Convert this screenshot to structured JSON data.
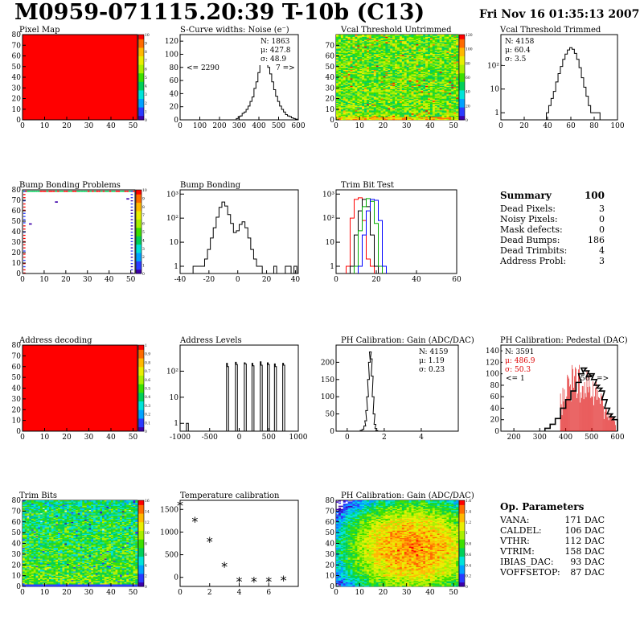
{
  "header": {
    "title": "M0959-071115.20:39 T-10b (C13)",
    "date": "Fri Nov 16 01:35:13 2007"
  },
  "panels": {
    "pixel_map": {
      "title": "Pixel Map",
      "xticks": [
        "0",
        "10",
        "20",
        "30",
        "40",
        "50"
      ],
      "yticks": [
        "0",
        "10",
        "20",
        "30",
        "40",
        "50",
        "60",
        "70",
        "80"
      ],
      "palette_ticks": [
        "0",
        "1",
        "2",
        "3",
        "4",
        "5",
        "6",
        "7",
        "8",
        "9",
        "10"
      ],
      "fill_color": "#ff0000"
    },
    "scurve": {
      "title": "S-Curve widths: Noise (e⁻)",
      "xticks": [
        "0",
        "100",
        "200",
        "300",
        "400",
        "500",
        "600"
      ],
      "yticks": [
        "0",
        "20",
        "40",
        "60",
        "80",
        "100",
        "120"
      ],
      "stats": [
        "N: 1863",
        "μ: 427.8",
        "σ: 48.9"
      ],
      "underflow": "<= 2290",
      "overflow": "7 =>"
    },
    "vcal_untrimmed": {
      "title": "Vcal Threshold Untrimmed",
      "xticks": [
        "0",
        "10",
        "20",
        "30",
        "40",
        "50"
      ],
      "yticks": [
        "0",
        "10",
        "20",
        "30",
        "40",
        "50",
        "60",
        "70"
      ],
      "palette_ticks": [
        "0",
        "20",
        "40",
        "60",
        "80",
        "100",
        "120"
      ]
    },
    "vcal_trimmed": {
      "title": "Vcal Threshold Trimmed",
      "xticks": [
        "0",
        "20",
        "40",
        "60",
        "80",
        "100"
      ],
      "yticks": [
        "1",
        "10",
        "10²"
      ],
      "stats": [
        "N: 4158",
        "μ: 60.4",
        "σ:  3.5"
      ]
    },
    "bump_problems": {
      "title": "Bump Bonding Problems",
      "xticks": [
        "0",
        "10",
        "20",
        "30",
        "40",
        "50"
      ],
      "yticks": [
        "0",
        "10",
        "20",
        "30",
        "40",
        "50",
        "60",
        "70",
        "80"
      ],
      "palette_ticks": [
        "0",
        "1",
        "2",
        "3",
        "4",
        "5",
        "6",
        "7",
        "8",
        "9",
        "10"
      ]
    },
    "bump_bonding": {
      "title": "Bump Bonding",
      "xticks": [
        "-40",
        "-20",
        "0",
        "20",
        "40"
      ],
      "yticks": [
        "1",
        "10",
        "10²",
        "10³"
      ]
    },
    "trim_bit_test": {
      "title": "Trim Bit Test",
      "xticks": [
        "0",
        "20",
        "40",
        "60"
      ],
      "yticks": [
        "1",
        "10",
        "10²",
        "10³"
      ]
    },
    "address_decoding": {
      "title": "Address decoding",
      "xticks": [
        "0",
        "10",
        "20",
        "30",
        "40",
        "50"
      ],
      "yticks": [
        "0",
        "10",
        "20",
        "30",
        "40",
        "50",
        "60",
        "70",
        "80"
      ],
      "palette_ticks": [
        "0",
        "0.1",
        "0.2",
        "0.3",
        "0.4",
        "0.5",
        "0.6",
        "0.7",
        "0.8",
        "0.9",
        "1"
      ],
      "fill_color": "#ff0000"
    },
    "address_levels": {
      "title": "Address Levels",
      "xticks": [
        "-1000",
        "-500",
        "0",
        "500",
        "1000"
      ],
      "yticks": [
        "1",
        "10",
        "10²"
      ]
    },
    "ph_gain_hist": {
      "title": "PH Calibration: Gain (ADC/DAC)",
      "xticks": [
        "0",
        "2",
        "4"
      ],
      "yticks": [
        "0",
        "50",
        "100",
        "150",
        "200"
      ],
      "stats": [
        "N: 4159",
        "μ: 1.19",
        "σ: 0.23"
      ]
    },
    "ph_pedestal": {
      "title": "PH Calibration: Pedestal (DAC)",
      "xticks": [
        "200",
        "300",
        "400",
        "500",
        "600"
      ],
      "yticks": [
        "0",
        "20",
        "40",
        "60",
        "80",
        "100",
        "120",
        "140"
      ],
      "stats": [
        "N: 3591",
        "μ: 486.9",
        "σ: 50.3"
      ],
      "underflow": "<= 1",
      "overflow": "567 =>"
    },
    "trim_bits": {
      "title": "Trim Bits",
      "xticks": [
        "0",
        "10",
        "20",
        "30",
        "40",
        "50"
      ],
      "yticks": [
        "0",
        "10",
        "20",
        "30",
        "40",
        "50",
        "60",
        "70",
        "80"
      ],
      "palette_ticks": [
        "0",
        "2",
        "4",
        "6",
        "8",
        "10",
        "12",
        "14",
        "16"
      ]
    },
    "temperature": {
      "title": "Temperature calibration",
      "xticks": [
        "0",
        "2",
        "4",
        "6"
      ],
      "yticks": [
        "0",
        "500",
        "1000",
        "1500"
      ]
    },
    "ph_gain_map": {
      "title": "PH Calibration: Gain (ADC/DAC)",
      "xticks": [
        "0",
        "10",
        "20",
        "30",
        "40",
        "50"
      ],
      "yticks": [
        "0",
        "10",
        "20",
        "30",
        "40",
        "50",
        "60",
        "70",
        "80"
      ],
      "palette_ticks": [
        "0",
        "0.2",
        "0.4",
        "0.6",
        "0.8",
        "1",
        "1.2",
        "1.4",
        "1.6"
      ]
    }
  },
  "chart_data": [
    {
      "type": "heatmap",
      "ref": "pixel_map",
      "xlim": [
        0,
        52
      ],
      "ylim": [
        0,
        80
      ],
      "zlim": [
        0,
        10
      ],
      "description_value": 10
    },
    {
      "type": "bar",
      "ref": "scurve",
      "xlim": [
        0,
        600
      ],
      "ylim": [
        0,
        130
      ],
      "x": [
        290,
        300,
        310,
        320,
        330,
        340,
        350,
        360,
        370,
        380,
        390,
        400,
        410,
        420,
        430,
        440,
        450,
        460,
        470,
        480,
        490,
        500,
        510,
        520,
        530,
        540,
        550,
        560,
        570,
        580,
        590
      ],
      "values": [
        2,
        5,
        6,
        10,
        12,
        16,
        21,
        28,
        35,
        48,
        58,
        72,
        86,
        94,
        98,
        90,
        80,
        70,
        58,
        46,
        36,
        28,
        21,
        16,
        12,
        8,
        6,
        5,
        3,
        2,
        1
      ]
    },
    {
      "type": "heatmap",
      "ref": "vcal_untrimmed",
      "xlim": [
        0,
        52
      ],
      "ylim": [
        0,
        80
      ],
      "zlim": [
        0,
        130
      ]
    },
    {
      "type": "bar",
      "ref": "vcal_trimmed",
      "log": true,
      "xlim": [
        0,
        100
      ],
      "ylim": [
        0.5,
        2000
      ],
      "x": [
        40,
        42,
        44,
        46,
        48,
        50,
        52,
        54,
        56,
        58,
        60,
        62,
        64,
        66,
        68,
        70,
        72,
        74,
        76,
        78,
        80,
        82,
        84
      ],
      "values": [
        1,
        2,
        4,
        8,
        20,
        45,
        90,
        180,
        300,
        450,
        560,
        480,
        320,
        180,
        80,
        30,
        12,
        5,
        2,
        1,
        1,
        1,
        1
      ]
    },
    {
      "type": "heatmap",
      "ref": "bump_problems",
      "xlim": [
        0,
        52
      ],
      "ylim": [
        0,
        80
      ],
      "zlim": [
        0,
        10
      ]
    },
    {
      "type": "bar",
      "ref": "bump_bonding",
      "log": true,
      "xlim": [
        -40,
        42
      ],
      "ylim": [
        0.5,
        1500
      ],
      "x": [
        -30,
        -28,
        -26,
        -24,
        -22,
        -20,
        -18,
        -16,
        -14,
        -12,
        -10,
        -8,
        -6,
        -4,
        -2,
        0,
        2,
        4,
        6,
        8,
        10,
        12,
        14,
        16,
        18,
        20,
        22,
        24,
        26,
        28,
        30,
        32,
        34,
        36,
        38,
        40
      ],
      "values": [
        1,
        1,
        1,
        1,
        2,
        5,
        15,
        40,
        110,
        280,
        470,
        320,
        140,
        60,
        25,
        30,
        55,
        70,
        40,
        15,
        5,
        2,
        1,
        1,
        0,
        0,
        0,
        0,
        1,
        0,
        0,
        0,
        1,
        1,
        0,
        1
      ]
    },
    {
      "type": "line",
      "ref": "trim_bit_test",
      "log": true,
      "xlim": [
        0,
        60
      ],
      "ylim": [
        0.5,
        1500
      ],
      "series": [
        {
          "name": "trim1",
          "color": "#ff0000",
          "x": [
            6,
            8,
            10,
            12,
            14,
            16,
            18
          ],
          "values": [
            1,
            100,
            600,
            700,
            80,
            2,
            1
          ]
        },
        {
          "name": "trim2",
          "color": "#000000",
          "x": [
            8,
            10,
            12,
            14,
            16,
            18,
            20
          ],
          "values": [
            1,
            20,
            200,
            600,
            300,
            20,
            1
          ]
        },
        {
          "name": "trim3",
          "color": "#00aa00",
          "x": [
            10,
            12,
            14,
            16,
            18,
            20,
            22
          ],
          "values": [
            1,
            30,
            300,
            650,
            500,
            60,
            1
          ]
        },
        {
          "name": "trim4",
          "color": "#0000ff",
          "x": [
            12,
            14,
            16,
            18,
            20,
            22,
            24
          ],
          "values": [
            1,
            20,
            200,
            600,
            550,
            80,
            1
          ]
        }
      ]
    },
    {
      "type": "heatmap",
      "ref": "address_decoding",
      "xlim": [
        0,
        52
      ],
      "ylim": [
        0,
        80
      ],
      "zlim": [
        0,
        1
      ],
      "description_value": 1
    },
    {
      "type": "bar",
      "ref": "address_levels",
      "log": true,
      "xlim": [
        -1000,
        1000
      ],
      "ylim": [
        0.5,
        1000
      ],
      "x": [
        -880,
        -860,
        -200,
        -180,
        -50,
        -30,
        100,
        120,
        230,
        250,
        370,
        390,
        490,
        510,
        610,
        630,
        750,
        770
      ],
      "values": [
        1,
        1,
        200,
        150,
        220,
        180,
        210,
        190,
        200,
        160,
        230,
        170,
        210,
        180,
        190,
        150,
        200,
        170
      ]
    },
    {
      "type": "bar",
      "ref": "ph_gain_hist",
      "xlim": [
        -0.6,
        6
      ],
      "ylim": [
        0,
        250
      ],
      "x": [
        0.75,
        0.85,
        0.95,
        1.0,
        1.05,
        1.1,
        1.15,
        1.2,
        1.25,
        1.3,
        1.35,
        1.4,
        1.45,
        1.5,
        1.55,
        1.6
      ],
      "values": [
        2,
        5,
        15,
        30,
        60,
        100,
        150,
        200,
        230,
        210,
        160,
        100,
        50,
        20,
        8,
        2
      ]
    },
    {
      "type": "bar",
      "ref": "ph_pedestal",
      "xlim": [
        150,
        600
      ],
      "ylim": [
        0,
        150
      ],
      "x": [
        330,
        350,
        370,
        390,
        410,
        430,
        450,
        460,
        470,
        480,
        490,
        500,
        510,
        520,
        530,
        540,
        550,
        560,
        570,
        580,
        590
      ],
      "values": [
        5,
        12,
        22,
        40,
        55,
        70,
        85,
        100,
        110,
        105,
        95,
        100,
        90,
        80,
        75,
        70,
        55,
        40,
        30,
        25,
        20
      ]
    },
    {
      "type": "heatmap",
      "ref": "trim_bits",
      "xlim": [
        0,
        52
      ],
      "ylim": [
        0,
        80
      ],
      "zlim": [
        0,
        16
      ]
    },
    {
      "type": "scatter",
      "ref": "temperature",
      "xlim": [
        0,
        8
      ],
      "ylim": [
        -200,
        1700
      ],
      "x": [
        0,
        1,
        2,
        3,
        4,
        5,
        6,
        7
      ],
      "values": [
        1580,
        1220,
        780,
        230,
        -100,
        -100,
        -100,
        -80
      ]
    },
    {
      "type": "heatmap",
      "ref": "ph_gain_map",
      "xlim": [
        0,
        52
      ],
      "ylim": [
        0,
        80
      ],
      "zlim": [
        0,
        1.7
      ]
    }
  ],
  "summary": {
    "title": "Summary",
    "value": "100",
    "rows": [
      {
        "label": "Dead Pixels:",
        "value": "3"
      },
      {
        "label": "Noisy Pixels:",
        "value": "0"
      },
      {
        "label": "Mask defects:",
        "value": "0"
      },
      {
        "label": "Dead Bumps:",
        "value": "186"
      },
      {
        "label": "Dead Trimbits:",
        "value": "4"
      },
      {
        "label": "Address Probl:",
        "value": "3"
      }
    ]
  },
  "op_params": {
    "title": "Op. Parameters",
    "rows": [
      {
        "label": "VANA:",
        "value": "171 DAC"
      },
      {
        "label": "CALDEL:",
        "value": "106 DAC"
      },
      {
        "label": "VTHR:",
        "value": "112 DAC"
      },
      {
        "label": "VTRIM:",
        "value": "158 DAC"
      },
      {
        "label": "IBIAS_DAC:",
        "value": "93 DAC"
      },
      {
        "label": "VOFFSETOP:",
        "value": "87 DAC"
      }
    ]
  }
}
